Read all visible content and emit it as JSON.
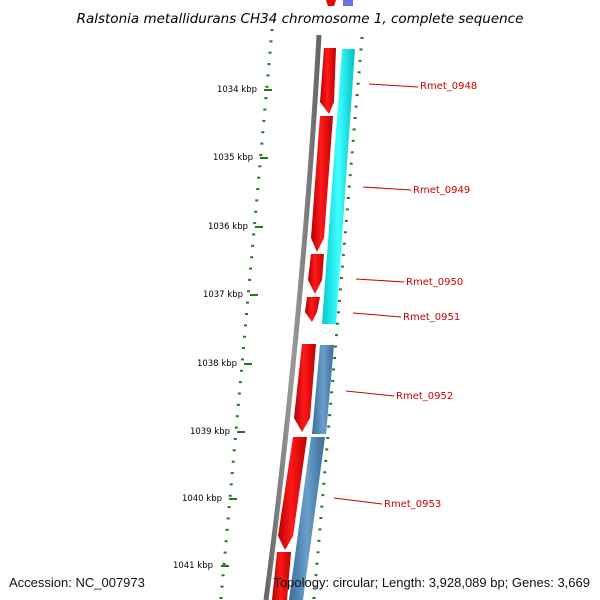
{
  "title": "Ralstonia metallidurans CH34 chromosome 1, complete sequence",
  "accession": "Accession: NC_007973",
  "topology": "Topology: circular; Length: 3,928,089 bp; Genes: 3,669",
  "colors": {
    "backbone": "#808080",
    "forward_gene": "#ee0000",
    "reverse_gene_a": "#00f0f0",
    "reverse_gene_b": "#4682b4",
    "tick": "#1f7a1f",
    "gene_label": "#cc0000",
    "leader": "#cc0000"
  },
  "scale": {
    "unit": "kbp",
    "ticks": [
      {
        "label": "1034 kbp",
        "kb": 1034
      },
      {
        "label": "1035 kbp",
        "kb": 1035
      },
      {
        "label": "1036 kbp",
        "kb": 1036
      },
      {
        "label": "1037 kbp",
        "kb": 1037
      },
      {
        "label": "1038 kbp",
        "kb": 1038
      },
      {
        "label": "1039 kbp",
        "kb": 1039
      },
      {
        "label": "1040 kbp",
        "kb": 1040
      },
      {
        "label": "1041 kbp",
        "kb": 1041
      }
    ]
  },
  "genes": [
    {
      "label": "Rmet_0948",
      "strand": "+"
    },
    {
      "label": "Rmet_0949",
      "strand": "+"
    },
    {
      "label": "Rmet_0950",
      "strand": "+"
    },
    {
      "label": "Rmet_0951",
      "strand": "+"
    },
    {
      "label": "Rmet_0952",
      "strand": "+"
    },
    {
      "label": "Rmet_0953",
      "strand": "+"
    }
  ]
}
